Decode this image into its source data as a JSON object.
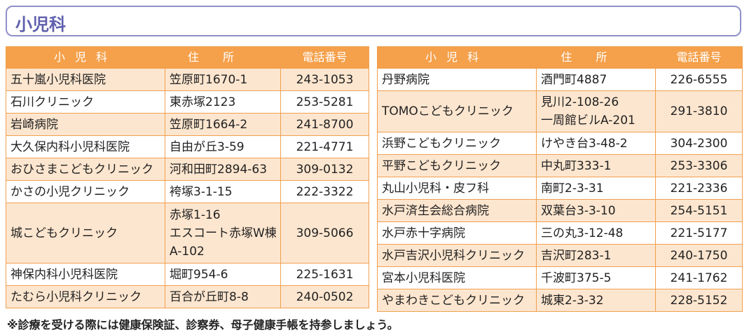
{
  "header": {
    "title": "小児科"
  },
  "tables": [
    {
      "columns": [
        "小児科",
        "住所",
        "電話番号"
      ],
      "rows": [
        [
          [
            "五十嵐小児科医院"
          ],
          [
            "笠原町1670-1"
          ],
          [
            "243-1053"
          ]
        ],
        [
          [
            "石川クリニック"
          ],
          [
            "東赤塚2123"
          ],
          [
            "253-5281"
          ]
        ],
        [
          [
            "岩崎病院"
          ],
          [
            "笠原町1664-2"
          ],
          [
            "241-8700"
          ]
        ],
        [
          [
            "大久保内科小児科医院"
          ],
          [
            "自由が丘3-59"
          ],
          [
            "221-4771"
          ]
        ],
        [
          [
            "おひさまこどもクリニック"
          ],
          [
            "河和田町2894-63"
          ],
          [
            "309-0132"
          ]
        ],
        [
          [
            "かさの小児クリニック"
          ],
          [
            "袴塚3-1-15"
          ],
          [
            "222-3322"
          ]
        ],
        [
          [
            "城こどもクリニック"
          ],
          [
            "赤塚1-16",
            "エスコート赤塚W棟",
            "A-102"
          ],
          [
            "309-5066"
          ]
        ],
        [
          [
            "神保内科小児科医院"
          ],
          [
            "堀町954-6"
          ],
          [
            "225-1631"
          ]
        ],
        [
          [
            "たむら小児科クリニック"
          ],
          [
            "百合が丘町8-8"
          ],
          [
            "240-0502"
          ]
        ]
      ]
    },
    {
      "columns": [
        "小児科",
        "住所",
        "電話番号"
      ],
      "rows": [
        [
          [
            "丹野病院"
          ],
          [
            "酒門町4887"
          ],
          [
            "226-6555"
          ]
        ],
        [
          [
            "TOMOこどもクリニック"
          ],
          [
            "見川2-108-26",
            "一周館ビルA-201"
          ],
          [
            "291-3810"
          ]
        ],
        [
          [
            "浜野こどもクリニック"
          ],
          [
            "けやき台3-48-2"
          ],
          [
            "304-2300"
          ]
        ],
        [
          [
            "平野こどもクリニック"
          ],
          [
            "中丸町333-1"
          ],
          [
            "253-3306"
          ]
        ],
        [
          [
            "丸山小児科・皮フ科"
          ],
          [
            "南町2-3-31"
          ],
          [
            "221-2336"
          ]
        ],
        [
          [
            "水戸済生会総合病院"
          ],
          [
            "双葉台3-3-10"
          ],
          [
            "254-5151"
          ]
        ],
        [
          [
            "水戸赤十字病院"
          ],
          [
            "三の丸3-12-48"
          ],
          [
            "221-5177"
          ]
        ],
        [
          [
            "水戸吉沢小児科クリニック"
          ],
          [
            "吉沢町283-1"
          ],
          [
            "240-1750"
          ]
        ],
        [
          [
            "宮本小児科医院"
          ],
          [
            "千波町375-5"
          ],
          [
            "241-1762"
          ]
        ],
        [
          [
            "やまわきこどもクリニック"
          ],
          [
            "城東2-3-32"
          ],
          [
            "228-5152"
          ]
        ]
      ]
    }
  ],
  "footnote": "※診療を受ける際には健康保険証、診察券、母子健康手帳を持参しましょう。"
}
